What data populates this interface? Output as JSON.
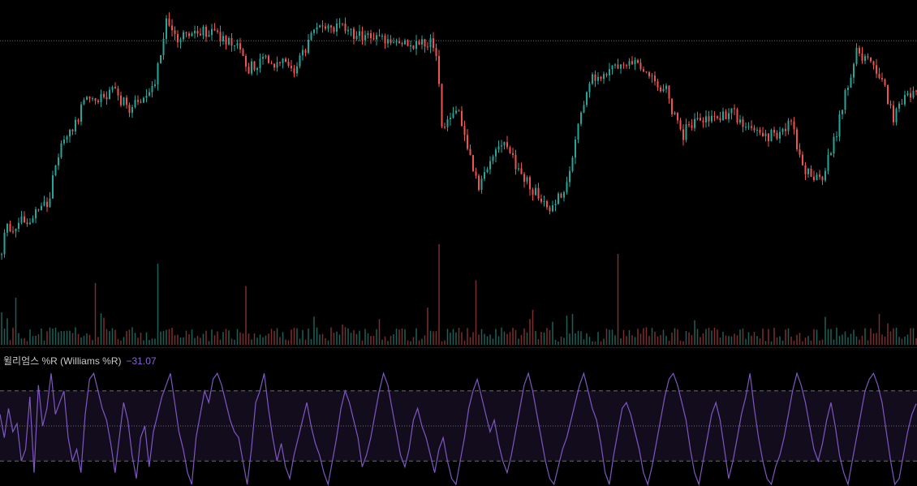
{
  "indicator": {
    "name": "윌리엄스 %R (Williams %R)",
    "value": "−31.07"
  },
  "colors": {
    "background": "#000000",
    "up": "#26a69a",
    "down": "#ef5350",
    "volume_up": "#1d5f56",
    "volume_down": "#7a2f2e",
    "wr_line": "#7e57c2",
    "wr_band": "#120c1d",
    "guide": "#6b6b6b"
  },
  "chart_data": [
    {
      "type": "candlestick",
      "title": "",
      "anchors": [
        [
          0,
          0.1
        ],
        [
          8,
          0.2
        ],
        [
          40,
          0.25
        ],
        [
          60,
          0.3
        ],
        [
          75,
          0.55
        ],
        [
          90,
          0.6
        ],
        [
          110,
          0.72
        ],
        [
          125,
          0.7
        ],
        [
          140,
          0.74
        ],
        [
          160,
          0.66
        ],
        [
          175,
          0.7
        ],
        [
          190,
          0.76
        ],
        [
          205,
          1.0
        ],
        [
          215,
          0.93
        ],
        [
          240,
          0.97
        ],
        [
          270,
          0.95
        ],
        [
          290,
          0.92
        ],
        [
          305,
          0.82
        ],
        [
          330,
          0.85
        ],
        [
          345,
          0.84
        ],
        [
          365,
          0.82
        ],
        [
          385,
          0.95
        ],
        [
          400,
          1.0
        ],
        [
          420,
          0.98
        ],
        [
          440,
          0.95
        ],
        [
          460,
          0.94
        ],
        [
          480,
          0.93
        ],
        [
          500,
          0.92
        ],
        [
          530,
          0.93
        ],
        [
          538,
          0.88
        ],
        [
          545,
          0.6
        ],
        [
          565,
          0.64
        ],
        [
          580,
          0.48
        ],
        [
          590,
          0.35
        ],
        [
          600,
          0.45
        ],
        [
          620,
          0.55
        ],
        [
          640,
          0.42
        ],
        [
          660,
          0.34
        ],
        [
          680,
          0.28
        ],
        [
          700,
          0.38
        ],
        [
          710,
          0.55
        ],
        [
          725,
          0.78
        ],
        [
          740,
          0.8
        ],
        [
          760,
          0.82
        ],
        [
          780,
          0.84
        ],
        [
          800,
          0.78
        ],
        [
          820,
          0.74
        ],
        [
          840,
          0.56
        ],
        [
          860,
          0.64
        ],
        [
          880,
          0.62
        ],
        [
          900,
          0.66
        ],
        [
          920,
          0.58
        ],
        [
          940,
          0.56
        ],
        [
          960,
          0.57
        ],
        [
          975,
          0.62
        ],
        [
          990,
          0.43
        ],
        [
          1010,
          0.38
        ],
        [
          1025,
          0.5
        ],
        [
          1040,
          0.7
        ],
        [
          1055,
          0.88
        ],
        [
          1070,
          0.84
        ],
        [
          1085,
          0.8
        ],
        [
          1100,
          0.63
        ],
        [
          1115,
          0.7
        ],
        [
          1130,
          0.72
        ]
      ],
      "range": [
        0,
        1
      ],
      "reference_level": 0.93,
      "volume_spikes": [
        [
          540,
          0.95
        ],
        [
          763,
          0.85
        ],
        [
          194,
          0.75
        ],
        [
          585,
          0.58
        ],
        [
          304,
          0.52
        ],
        [
          116,
          0.55
        ],
        [
          20,
          0.4
        ]
      ]
    },
    {
      "type": "line",
      "title": "",
      "series": [
        {
          "values": [
            -40,
            -60,
            -35,
            -55,
            -48,
            -80,
            -70,
            -25,
            -90,
            -15,
            -50,
            -35,
            -5,
            -40,
            -30,
            -20,
            -60,
            -80,
            -70,
            -90,
            -40,
            -10,
            -5,
            -20,
            -35,
            -45,
            -65,
            -90,
            -60,
            -30,
            -45,
            -75,
            -95,
            -60,
            -50,
            -85,
            -55,
            -40,
            -25,
            -15,
            -5,
            -30,
            -55,
            -70,
            -90,
            -100,
            -60,
            -40,
            -20,
            -30,
            -10,
            -5,
            -15,
            -30,
            -45,
            -55,
            -60,
            -80,
            -100,
            -70,
            -30,
            -20,
            -5,
            -35,
            -60,
            -80,
            -65,
            -85,
            -95,
            -75,
            -60,
            -45,
            -30,
            -50,
            -65,
            -75,
            -90,
            -100,
            -80,
            -60,
            -35,
            -20,
            -30,
            -45,
            -60,
            -85,
            -75,
            -60,
            -40,
            -20,
            -5,
            -15,
            -35,
            -55,
            -75,
            -85,
            -70,
            -45,
            -35,
            -50,
            -60,
            -75,
            -90,
            -70,
            -60,
            -80,
            -95,
            -100,
            -80,
            -60,
            -35,
            -20,
            -10,
            -25,
            -40,
            -55,
            -45,
            -65,
            -80,
            -90,
            -75,
            -55,
            -35,
            -15,
            -5,
            -20,
            -40,
            -60,
            -80,
            -95,
            -100,
            -85,
            -70,
            -60,
            -45,
            -30,
            -15,
            -5,
            -20,
            -35,
            -45,
            -65,
            -90,
            -100,
            -75,
            -55,
            -35,
            -30,
            -40,
            -55,
            -70,
            -90,
            -100,
            -85,
            -65,
            -45,
            -25,
            -10,
            -5,
            -15,
            -30,
            -45,
            -70,
            -90,
            -100,
            -80,
            -60,
            -40,
            -30,
            -45,
            -70,
            -95,
            -80,
            -60,
            -40,
            -25,
            -5,
            -35,
            -60,
            -80,
            -95,
            -100,
            -85,
            -75,
            -60,
            -40,
            -20,
            -5,
            -15,
            -30,
            -50,
            -70,
            -80,
            -65,
            -45,
            -30,
            -50,
            -75,
            -90,
            -100,
            -80,
            -60,
            -40,
            -20,
            -10,
            -5,
            -15,
            -30,
            -55,
            -80,
            -100,
            -95,
            -75,
            -55,
            -40,
            -31
          ]
        }
      ],
      "ylim": [
        -100,
        0
      ],
      "levels": [
        -20,
        -50,
        -80
      ]
    }
  ]
}
